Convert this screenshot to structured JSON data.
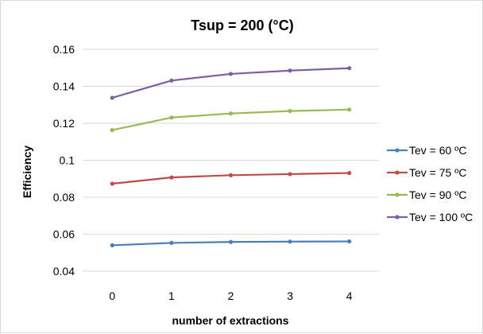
{
  "chart_data": {
    "type": "line",
    "title": "Tsup = 200 (°C)",
    "xlabel": "number of extractions",
    "ylabel": "Efficiency",
    "categories": [
      "0",
      "1",
      "2",
      "3",
      "4"
    ],
    "ylim": [
      0.04,
      0.16
    ],
    "yticks": [
      "0.04",
      "0.06",
      "0.08",
      "0.1",
      "0.12",
      "0.14",
      "0.16"
    ],
    "grid": true,
    "legend_position": "right",
    "series": [
      {
        "name": "Tev = 60 ºC",
        "color": "#4a7ebb",
        "values": [
          0.054,
          0.0553,
          0.0558,
          0.056,
          0.0561
        ]
      },
      {
        "name": "Tev = 75 ºC",
        "color": "#be4b48",
        "values": [
          0.0873,
          0.0907,
          0.0919,
          0.0925,
          0.0931
        ]
      },
      {
        "name": "Tev = 90 ºC",
        "color": "#98b954",
        "values": [
          0.1163,
          0.1231,
          0.1253,
          0.1266,
          0.1274
        ]
      },
      {
        "name": "Tev = 100 ºC",
        "color": "#7d60a0",
        "values": [
          0.1338,
          0.1431,
          0.1467,
          0.1485,
          0.1498
        ]
      }
    ]
  }
}
